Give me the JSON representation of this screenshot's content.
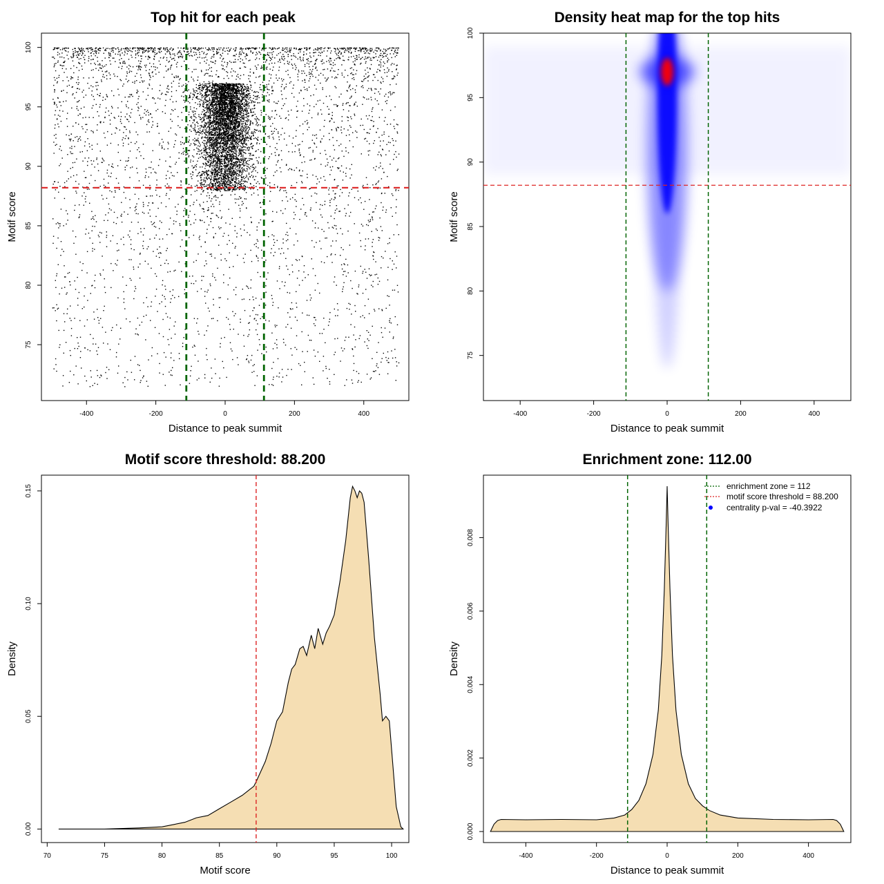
{
  "colors": {
    "threshold": "#dd2222",
    "zone": "#006400",
    "fill": "#f5deb3",
    "heat_low": "#ffffff",
    "heat_mid": "#0000ff",
    "heat_high": "#ff0000",
    "centrality": "#0000ff"
  },
  "chart_data": [
    {
      "type": "scatter",
      "title": "Top hit for each peak",
      "xlabel": "Distance to peak summit",
      "ylabel": "Motif score",
      "xlim": [
        -530,
        530
      ],
      "ylim": [
        70.3,
        101.2
      ],
      "xticks": [
        "-400",
        "-200",
        "0",
        "200",
        "400"
      ],
      "yticks": [
        "75",
        "80",
        "85",
        "90",
        "95",
        "100"
      ],
      "x_range": [
        -500,
        500
      ],
      "score_range": [
        71.5,
        100
      ],
      "center_score": 97,
      "threshold": 88.2,
      "enrichment_zone": 112
    },
    {
      "type": "heatmap",
      "title": "Density heat map for the top hits",
      "xlabel": "Distance to peak summit",
      "ylabel": "Motif score",
      "xlim": [
        -500,
        500
      ],
      "ylim": [
        71.5,
        100
      ],
      "xticks": [
        "-400",
        "-200",
        "0",
        "200",
        "400"
      ],
      "yticks": [
        "75",
        "80",
        "85",
        "90",
        "95",
        "100"
      ],
      "peak": {
        "x": 0,
        "y": 97
      },
      "threshold": 88.2,
      "enrichment_zone": 112
    },
    {
      "type": "area",
      "title": "Motif score threshold: 88.200",
      "xlabel": "Motif score",
      "ylabel": "Density",
      "xlim": [
        69.5,
        101.5
      ],
      "ylim": [
        -0.006,
        0.157
      ],
      "xticks": [
        "70",
        "75",
        "80",
        "85",
        "90",
        "95",
        "100"
      ],
      "yticks": [
        "0.00",
        "0.05",
        "0.10",
        "0.15"
      ],
      "x": [
        71,
        75,
        78,
        80,
        81,
        82,
        83,
        84,
        85,
        86,
        87,
        88,
        88.2,
        89,
        89.5,
        90,
        90.5,
        91,
        91.3,
        91.6,
        92,
        92.3,
        92.6,
        93,
        93.3,
        93.6,
        94,
        94.3,
        94.6,
        95,
        95.5,
        96,
        96.4,
        96.6,
        96.8,
        97,
        97.2,
        97.4,
        97.6,
        98,
        98.5,
        99,
        99.2,
        99.5,
        99.8,
        100,
        100.4,
        100.8,
        101
      ],
      "y": [
        0,
        0,
        0.0005,
        0.001,
        0.002,
        0.003,
        0.005,
        0.006,
        0.009,
        0.012,
        0.015,
        0.019,
        0.021,
        0.03,
        0.038,
        0.048,
        0.052,
        0.065,
        0.071,
        0.073,
        0.08,
        0.081,
        0.077,
        0.086,
        0.08,
        0.089,
        0.082,
        0.087,
        0.09,
        0.095,
        0.11,
        0.128,
        0.147,
        0.152,
        0.15,
        0.147,
        0.15,
        0.149,
        0.145,
        0.12,
        0.085,
        0.06,
        0.048,
        0.05,
        0.048,
        0.035,
        0.01,
        0.001,
        0
      ],
      "threshold": 88.2
    },
    {
      "type": "area",
      "title": "Enrichment zone: 112.00",
      "xlabel": "Distance to peak summit",
      "ylabel": "Density",
      "xlim": [
        -520,
        520
      ],
      "ylim": [
        -0.0003,
        0.0097
      ],
      "xticks": [
        "-400",
        "-200",
        "0",
        "200",
        "400"
      ],
      "yticks": [
        "0.000",
        "0.002",
        "0.004",
        "0.006",
        "0.008"
      ],
      "x": [
        -500,
        -490,
        -480,
        -470,
        -400,
        -300,
        -200,
        -150,
        -120,
        -100,
        -80,
        -60,
        -40,
        -25,
        -15,
        -8,
        -3,
        0,
        3,
        8,
        15,
        25,
        40,
        60,
        80,
        100,
        120,
        150,
        200,
        300,
        400,
        470,
        480,
        490,
        500
      ],
      "y": [
        0,
        0.0002,
        0.0003,
        0.00033,
        0.00032,
        0.00033,
        0.00032,
        0.00037,
        0.00045,
        0.0006,
        0.00085,
        0.0013,
        0.0021,
        0.0033,
        0.0048,
        0.0066,
        0.0083,
        0.0094,
        0.0083,
        0.0066,
        0.0048,
        0.0033,
        0.0021,
        0.0013,
        0.0009,
        0.0007,
        0.00057,
        0.00045,
        0.00037,
        0.00033,
        0.00032,
        0.00033,
        0.0003,
        0.0002,
        0
      ],
      "enrichment_zone": 112,
      "legend": [
        {
          "kind": "dotted-line",
          "color": "#006400",
          "label": "enrichment zone = 112"
        },
        {
          "kind": "dotted-line",
          "color": "#dd2222",
          "label": "motif score threshold = 88.200"
        },
        {
          "kind": "dot",
          "color": "#0000ff",
          "label": "centrality p-val = -40.3922"
        }
      ],
      "legend_position": "top-right"
    }
  ]
}
